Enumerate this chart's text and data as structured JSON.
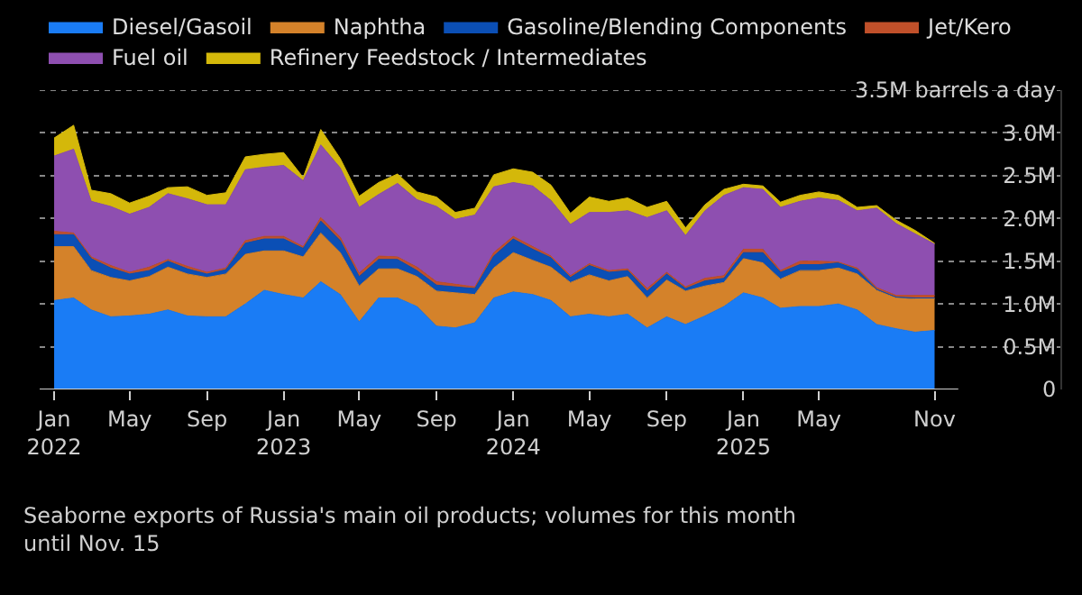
{
  "chart_data": {
    "type": "area",
    "stacked": true,
    "annotations": [
      "Seaborne exports of Russia's main oil products; volumes for this month until Nov. 15"
    ],
    "x": [
      "2022-01",
      "2022-02",
      "2022-03",
      "2022-04",
      "2022-05",
      "2022-06",
      "2022-07",
      "2022-08",
      "2022-09",
      "2022-10",
      "2022-11",
      "2022-12",
      "2023-01",
      "2023-02",
      "2023-03",
      "2023-04",
      "2023-05",
      "2023-06",
      "2023-07",
      "2023-08",
      "2023-09",
      "2023-10",
      "2023-11",
      "2023-12",
      "2024-01",
      "2024-02",
      "2024-03",
      "2024-04",
      "2024-05",
      "2024-06",
      "2024-07",
      "2024-08",
      "2024-09",
      "2024-10",
      "2024-11",
      "2024-12",
      "2025-01",
      "2025-02",
      "2025-03",
      "2025-04",
      "2025-05",
      "2025-06",
      "2025-07",
      "2025-08",
      "2025-09",
      "2025-10",
      "2025-11"
    ],
    "series": [
      {
        "name": "Diesel/Gasoil",
        "color": "#1a7cf5",
        "values": [
          1.04,
          1.07,
          0.93,
          0.85,
          0.86,
          0.88,
          0.93,
          0.86,
          0.85,
          0.85,
          1.0,
          1.16,
          1.11,
          1.07,
          1.26,
          1.11,
          0.79,
          1.07,
          1.07,
          0.97,
          0.74,
          0.72,
          0.78,
          1.07,
          1.14,
          1.11,
          1.04,
          0.85,
          0.88,
          0.85,
          0.88,
          0.72,
          0.85,
          0.76,
          0.86,
          0.97,
          1.13,
          1.07,
          0.95,
          0.97,
          0.97,
          1.0,
          0.93,
          0.76,
          0.71,
          0.67,
          0.69
        ]
      },
      {
        "name": "Naphtha",
        "color": "#d4822a",
        "values": [
          0.63,
          0.6,
          0.46,
          0.46,
          0.41,
          0.44,
          0.5,
          0.49,
          0.46,
          0.5,
          0.58,
          0.46,
          0.51,
          0.48,
          0.57,
          0.49,
          0.42,
          0.34,
          0.34,
          0.35,
          0.41,
          0.41,
          0.33,
          0.35,
          0.46,
          0.4,
          0.39,
          0.4,
          0.46,
          0.42,
          0.44,
          0.35,
          0.43,
          0.39,
          0.35,
          0.28,
          0.4,
          0.41,
          0.34,
          0.42,
          0.42,
          0.42,
          0.42,
          0.4,
          0.36,
          0.39,
          0.37
        ]
      },
      {
        "name": "Gasoline/Blending Components",
        "color": "#0b4fb5",
        "values": [
          0.14,
          0.14,
          0.14,
          0.11,
          0.08,
          0.07,
          0.07,
          0.06,
          0.04,
          0.05,
          0.13,
          0.14,
          0.14,
          0.1,
          0.14,
          0.14,
          0.11,
          0.11,
          0.11,
          0.07,
          0.07,
          0.07,
          0.07,
          0.14,
          0.16,
          0.13,
          0.11,
          0.06,
          0.11,
          0.1,
          0.07,
          0.08,
          0.07,
          0.03,
          0.06,
          0.05,
          0.07,
          0.12,
          0.08,
          0.07,
          0.07,
          0.06,
          0.05,
          0.01,
          0.01,
          0.01,
          0.01
        ]
      },
      {
        "name": "Jet/Kero",
        "color": "#c0502a",
        "values": [
          0.04,
          0.02,
          0.02,
          0.03,
          0.02,
          0.04,
          0.02,
          0.03,
          0.02,
          0.02,
          0.03,
          0.03,
          0.03,
          0.02,
          0.04,
          0.04,
          0.04,
          0.04,
          0.03,
          0.04,
          0.04,
          0.03,
          0.02,
          0.04,
          0.03,
          0.03,
          0.02,
          0.02,
          0.02,
          0.02,
          0.02,
          0.03,
          0.02,
          0.02,
          0.03,
          0.03,
          0.04,
          0.04,
          0.02,
          0.04,
          0.04,
          0.01,
          0.02,
          0.02,
          0.02,
          0.03,
          0.03
        ]
      },
      {
        "name": "Fuel oil",
        "color": "#8e4fb0",
        "values": [
          0.88,
          0.98,
          0.65,
          0.69,
          0.68,
          0.7,
          0.77,
          0.79,
          0.79,
          0.74,
          0.83,
          0.81,
          0.83,
          0.77,
          0.85,
          0.81,
          0.77,
          0.72,
          0.86,
          0.79,
          0.88,
          0.76,
          0.84,
          0.77,
          0.63,
          0.71,
          0.65,
          0.6,
          0.6,
          0.68,
          0.68,
          0.83,
          0.72,
          0.6,
          0.79,
          0.94,
          0.72,
          0.7,
          0.74,
          0.7,
          0.74,
          0.72,
          0.67,
          0.93,
          0.84,
          0.72,
          0.6
        ]
      },
      {
        "name": "Refinery Feedstock / Intermediates",
        "color": "#d4b80a",
        "values": [
          0.21,
          0.28,
          0.13,
          0.15,
          0.13,
          0.13,
          0.07,
          0.14,
          0.11,
          0.14,
          0.15,
          0.15,
          0.15,
          0.04,
          0.18,
          0.11,
          0.13,
          0.14,
          0.11,
          0.09,
          0.11,
          0.08,
          0.08,
          0.14,
          0.16,
          0.16,
          0.18,
          0.13,
          0.18,
          0.13,
          0.15,
          0.12,
          0.11,
          0.09,
          0.07,
          0.07,
          0.04,
          0.04,
          0.06,
          0.07,
          0.07,
          0.06,
          0.04,
          0.03,
          0.04,
          0.04,
          0.01
        ]
      }
    ],
    "xlim": [
      "2021-12-09",
      "2026-05-20"
    ],
    "xticks": [
      {
        "value": "2022-01",
        "label": "Jan 2022"
      },
      {
        "value": "2022-05",
        "label": "May"
      },
      {
        "value": "2022-09",
        "label": "Sep"
      },
      {
        "value": "2023-01",
        "label": "Jan 2023"
      },
      {
        "value": "2023-05",
        "label": "May"
      },
      {
        "value": "2023-09",
        "label": "Sep"
      },
      {
        "value": "2024-01",
        "label": "Jan 2024"
      },
      {
        "value": "2024-05",
        "label": "May"
      },
      {
        "value": "2024-09",
        "label": "Sep"
      },
      {
        "value": "2025-01",
        "label": "Jan 2025"
      },
      {
        "value": "2025-05",
        "label": "May"
      },
      {
        "value": "2025-11",
        "label": "Nov"
      }
    ],
    "ylim": [
      0,
      3.5
    ],
    "yticks": [
      0,
      {
        "value": 0.5,
        "label": "0.5M"
      },
      {
        "value": 1,
        "label": "1.0M"
      },
      {
        "value": 1.5,
        "label": "1.5M"
      },
      {
        "value": 2,
        "label": "2.0M"
      },
      {
        "value": 2.5,
        "label": "2.5M"
      },
      {
        "value": 3,
        "label": "3.0M"
      },
      {
        "value": 3.5,
        "label": "3.5M barrels a day"
      }
    ],
    "grid": "y",
    "legend": "top left"
  }
}
